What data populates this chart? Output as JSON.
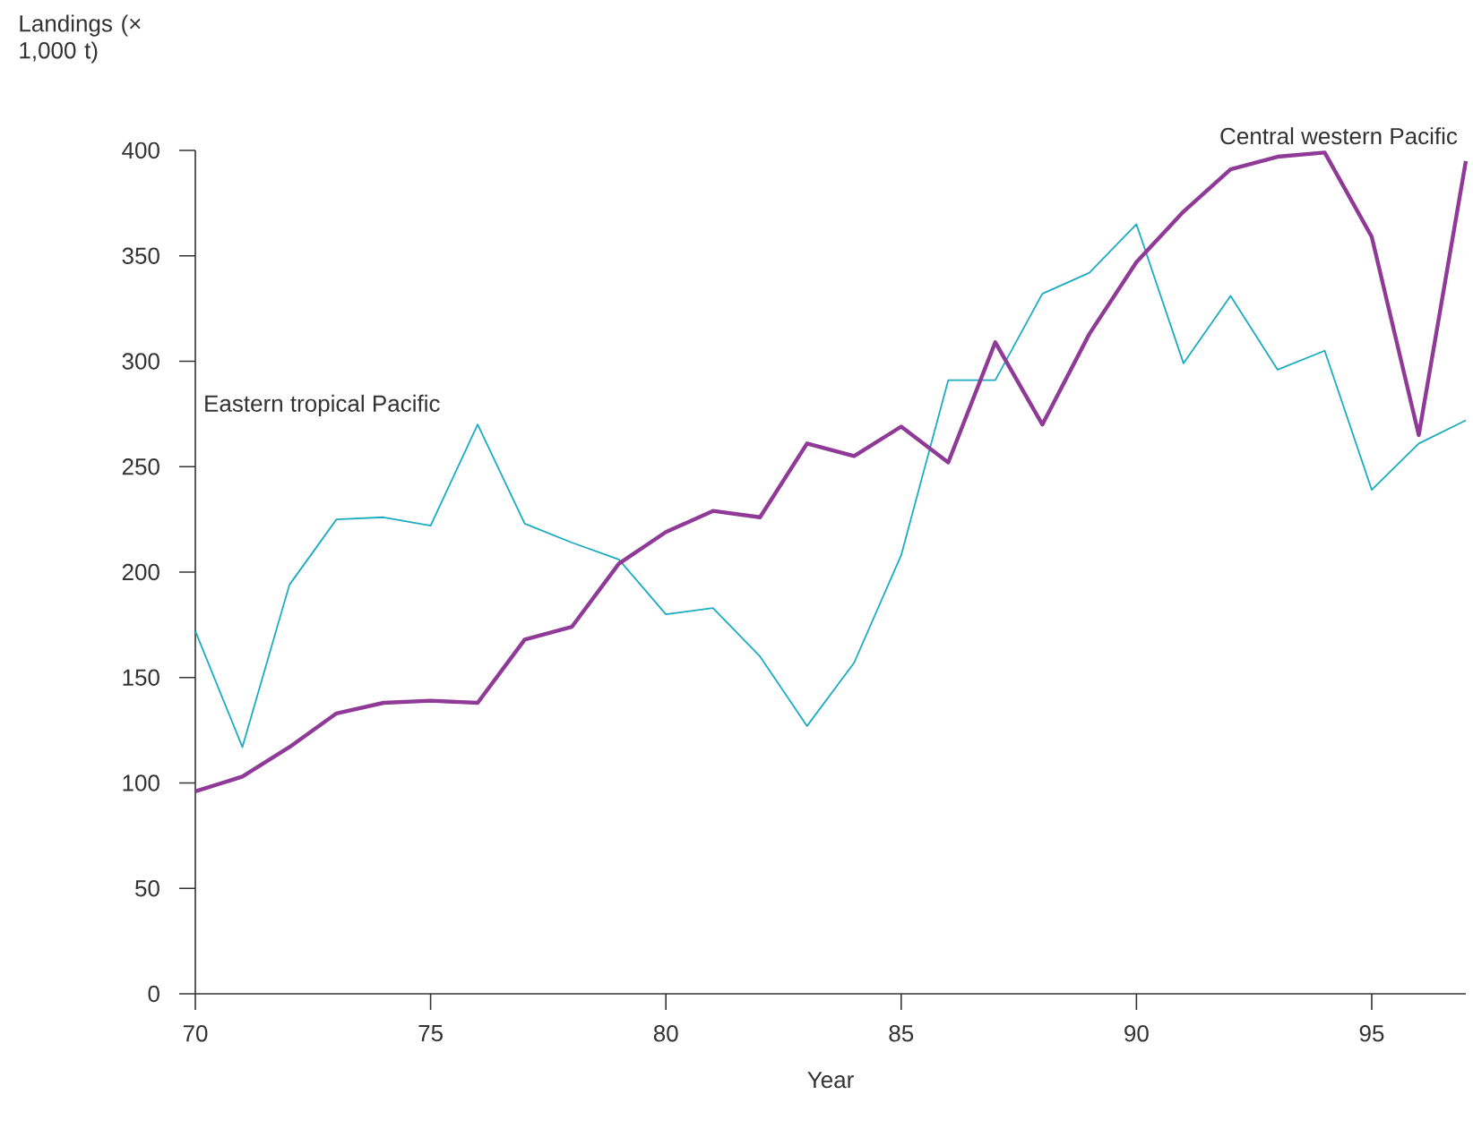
{
  "chart_data": {
    "type": "line",
    "ylabel": "Landings (× 1,000 t)",
    "xlabel": "Year",
    "x": [
      70,
      71,
      72,
      73,
      74,
      75,
      76,
      77,
      78,
      79,
      80,
      81,
      82,
      83,
      84,
      85,
      86,
      87,
      88,
      89,
      90,
      91,
      92,
      93,
      94,
      95,
      96,
      97
    ],
    "series": [
      {
        "name": "Eastern tropical Pacific",
        "color": "#1aacc0",
        "values": [
          172,
          117,
          194,
          225,
          226,
          222,
          270,
          223,
          214,
          206,
          180,
          183,
          160,
          127,
          157,
          208,
          291,
          291,
          332,
          342,
          365,
          299,
          331,
          296,
          305,
          239,
          261,
          272
        ]
      },
      {
        "name": "Central western Pacific",
        "color": "#8e3a96",
        "values": [
          96,
          103,
          117,
          133,
          138,
          139,
          138,
          168,
          174,
          204,
          219,
          229,
          226,
          261,
          255,
          269,
          252,
          309,
          270,
          313,
          347,
          371,
          391,
          397,
          399,
          359,
          265,
          395
        ]
      }
    ],
    "xlim": [
      70,
      97
    ],
    "xticks": [
      70,
      75,
      80,
      85,
      90,
      95
    ],
    "ylim": [
      0,
      400
    ],
    "yticks": [
      0,
      50,
      100,
      150,
      200,
      250,
      300,
      350,
      400
    ],
    "grid": false,
    "legend": false,
    "marker": "none",
    "line_style": "solid"
  }
}
